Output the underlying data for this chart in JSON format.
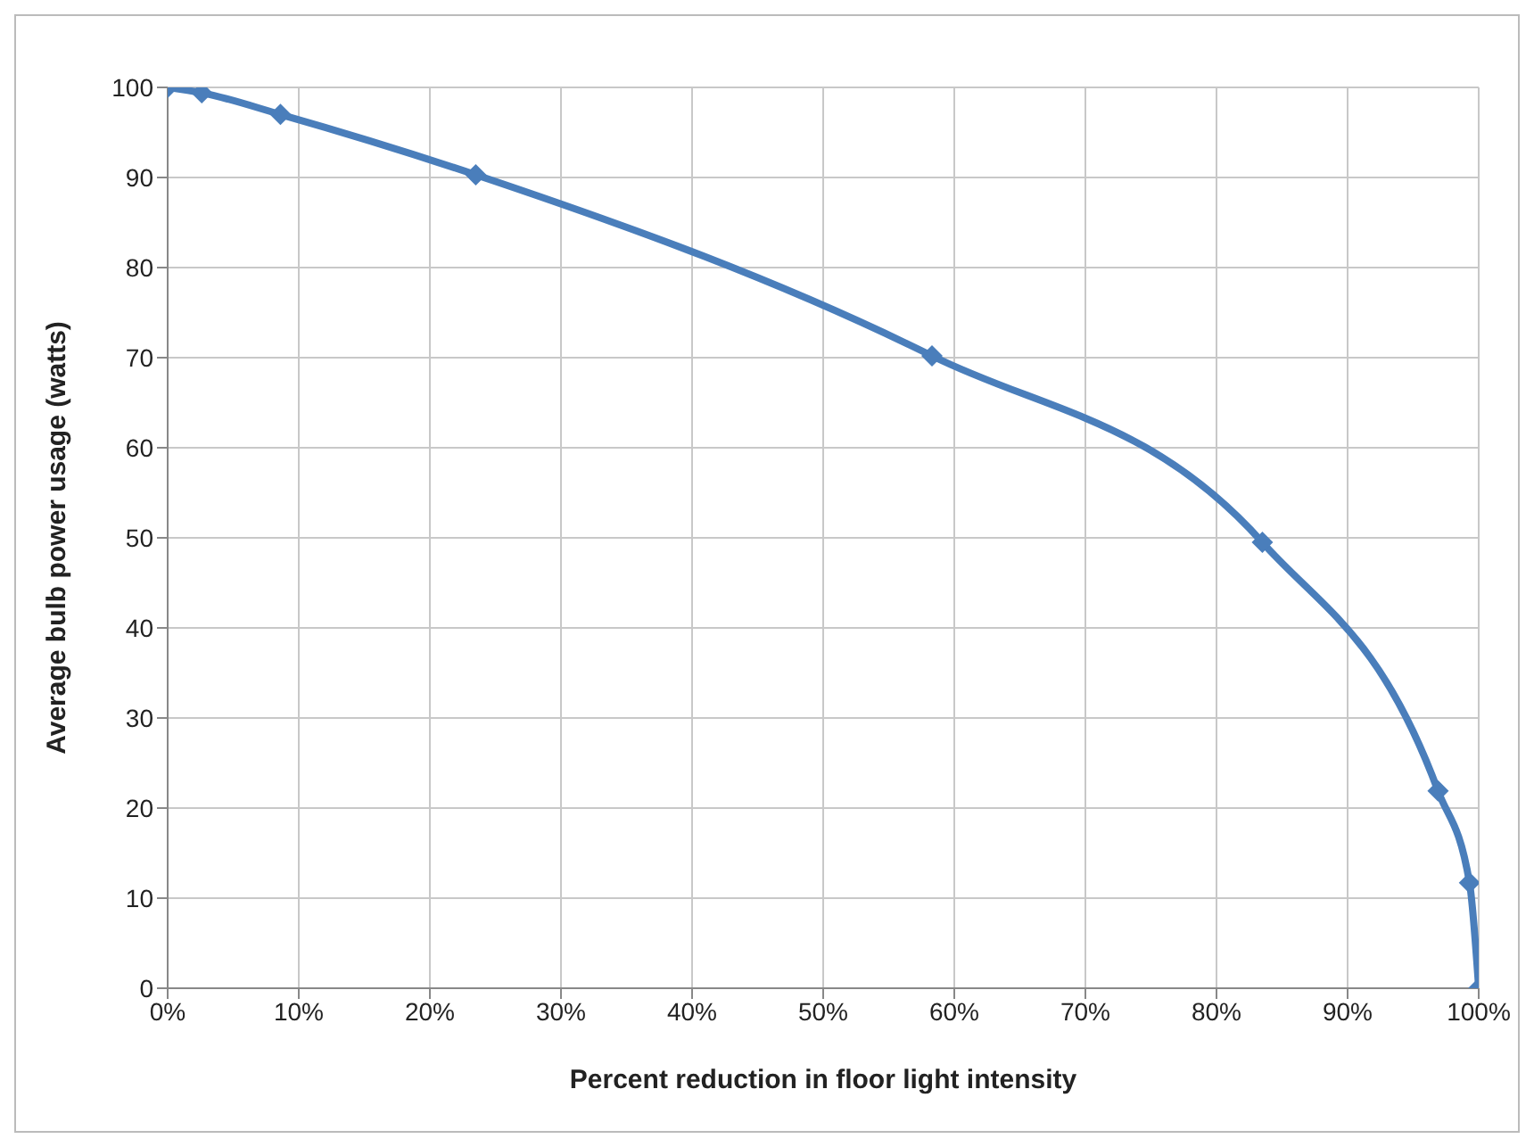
{
  "chart_data": {
    "type": "line",
    "xlabel": "Percent reduction in floor light intensity",
    "ylabel": "Average  bulb power usage (watts)",
    "x": [
      0,
      2.6,
      8.6,
      23.5,
      58.3,
      83.5,
      96.9,
      99.3,
      100
    ],
    "series": [
      {
        "color": "#4a7ebb",
        "values": [
          100,
          99.4,
          97,
          90.3,
          70.2,
          49.5,
          21.9,
          11.7,
          0
        ]
      }
    ],
    "xlim": [
      0,
      100
    ],
    "xticks": [
      {
        "value": 0,
        "label": "0%"
      },
      {
        "value": 10,
        "label": "10%"
      },
      {
        "value": 20,
        "label": "20%"
      },
      {
        "value": 30,
        "label": "30%"
      },
      {
        "value": 40,
        "label": "40%"
      },
      {
        "value": 50,
        "label": "50%"
      },
      {
        "value": 60,
        "label": "60%"
      },
      {
        "value": 70,
        "label": "70%"
      },
      {
        "value": 80,
        "label": "80%"
      },
      {
        "value": 90,
        "label": "90%"
      },
      {
        "value": 100,
        "label": "100%"
      }
    ],
    "ylim": [
      0,
      100
    ],
    "yticks": [
      0,
      10,
      20,
      30,
      40,
      50,
      60,
      70,
      80,
      90,
      100
    ],
    "grid": true,
    "marker": "diamond",
    "line_style": "solid",
    "legend": false
  }
}
